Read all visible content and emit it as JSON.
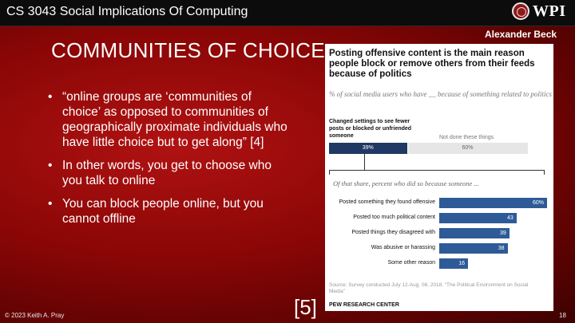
{
  "header": {
    "course_title": "CS 3043 Social Implications Of Computing",
    "logo_text": "WPI",
    "author": "Alexander Beck"
  },
  "slide": {
    "title": "COMMUNITIES OF CHOICE",
    "bullets": [
      "“online groups are ‘communities of choice’ as opposed to communities of geographically proximate individuals who have little choice but to get along” [4]",
      "In other words, you get to choose who you talk to online",
      "You can block people online, but you cannot offline"
    ],
    "bullet_symbol": "•",
    "citation": "[5]"
  },
  "footer": {
    "copyright": "© 2023 Keith A. Pray",
    "page_number": "18"
  },
  "chart_data": {
    "type": "bar",
    "title": "Posting offensive content is the main reason people block or remove others from their feeds because of politics",
    "subtitle": "% of social media users who have __ because of something related to politics",
    "top_bar": {
      "category": "Changed settings to see fewer posts or blocked or unfriended someone",
      "values": [
        39,
        60
      ],
      "value_labels": [
        "39%",
        "60%"
      ],
      "other_label": "Not done these things",
      "colors": [
        "#1f3864",
        "#e6e6e6"
      ]
    },
    "breakdown_title": "Of that share, percent who did so because someone ...",
    "categories": [
      "Posted something they found offensive",
      "Posted too much political content",
      "Posted things they disagreed with",
      "Was abusive or harassing",
      "Some other reason"
    ],
    "values": [
      60,
      43,
      39,
      38,
      16
    ],
    "value_labels": [
      "60%",
      "43",
      "39",
      "38",
      "16"
    ],
    "bar_color": "#2e5b97",
    "source": "Source: Survey conducted July 12-Aug. 08, 2018. “The Political Environment on Social Media”",
    "publisher": "PEW RESEARCH CENTER"
  }
}
